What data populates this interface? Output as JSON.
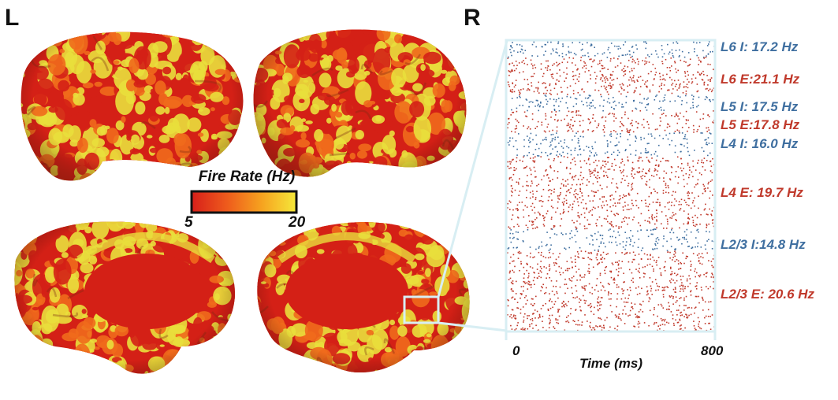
{
  "panels": {
    "left_letter": "L",
    "right_letter": "R"
  },
  "colorbar": {
    "title": "Fire Rate (Hz)",
    "min_label": "5",
    "max_label": "20",
    "min": 5,
    "max": 20,
    "colors": [
      "#d71f1a",
      "#ee5a1c",
      "#f6a21f",
      "#f5e93a"
    ]
  },
  "raster": {
    "x_min_label": "0",
    "x_max_label": "800",
    "x_label": "Time (ms)",
    "x_range": [
      0,
      800
    ],
    "layers": [
      {
        "label": "L6 I: 17.2 Hz",
        "type": "I",
        "rate": 17.2
      },
      {
        "label": "L6 E:21.1 Hz",
        "type": "E",
        "rate": 21.1
      },
      {
        "label": "L5 I: 17.5 Hz",
        "type": "I",
        "rate": 17.5
      },
      {
        "label": "L5 E:17.8 Hz",
        "type": "E",
        "rate": 17.8
      },
      {
        "label": "L4 I: 16.0 Hz",
        "type": "I",
        "rate": 16.0
      },
      {
        "label": "L4 E: 19.7 Hz",
        "type": "E",
        "rate": 19.7
      },
      {
        "label": "L2/3 I:14.8 Hz",
        "type": "I",
        "rate": 14.8
      },
      {
        "label": "L2/3 E: 20.6 Hz",
        "type": "E",
        "rate": 20.6
      }
    ],
    "colors": {
      "E": "#c0392b",
      "I": "#3f6fa0"
    },
    "frame_color": "#d8eef3"
  },
  "brain_colors": {
    "low": "#d42016",
    "mid": "#ef6a1c",
    "high": "#e9df3c",
    "shadow": "#7a2a10"
  }
}
